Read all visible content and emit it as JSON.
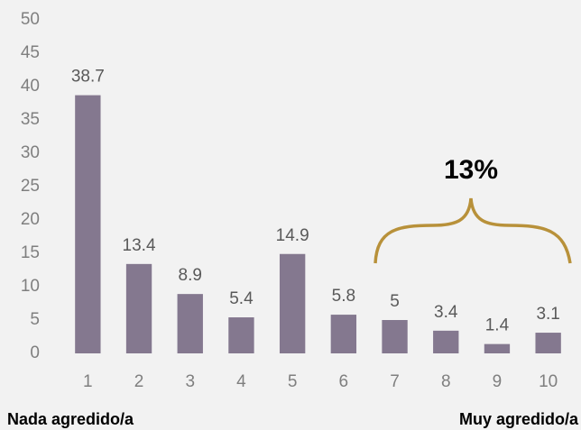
{
  "chart_data": {
    "type": "bar",
    "categories": [
      "1",
      "2",
      "3",
      "4",
      "5",
      "6",
      "7",
      "8",
      "9",
      "10"
    ],
    "values": [
      38.7,
      13.4,
      8.9,
      5.4,
      14.9,
      5.8,
      5,
      3.4,
      1.4,
      3.1
    ],
    "color": "#84788f",
    "ylim": [
      0,
      50
    ],
    "yticks": [
      0,
      5,
      10,
      15,
      20,
      25,
      30,
      35,
      40,
      45,
      50
    ],
    "grid": false,
    "annotations": [
      "13%",
      "Nada agredido/a",
      "Muy agredido/a"
    ]
  }
}
